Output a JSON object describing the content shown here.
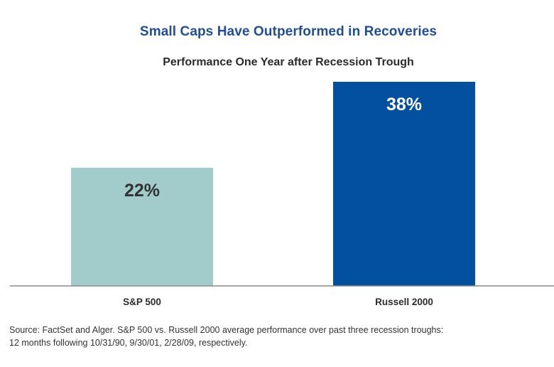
{
  "chart_data": {
    "type": "bar",
    "title": "Small Caps Have Outperformed in Recoveries",
    "subtitle": "Performance One Year after Recession Trough",
    "categories": [
      "S&P 500",
      "Russell 2000"
    ],
    "values": [
      22,
      38
    ],
    "value_labels": [
      "22%",
      "38%"
    ],
    "xlabel": "",
    "ylabel": "",
    "ylim": [
      0,
      38
    ],
    "grid": false,
    "colors": [
      "#a2cccc",
      "#02509f"
    ],
    "label_colors": [
      "#333333",
      "#ffffff"
    ]
  },
  "source": {
    "line1": "Source: FactSet and Alger. S&P 500 vs. Russell 2000 average performance over past three recession troughs:",
    "line2": "12 months following 10/31/90, 9/30/01, 2/28/09, respectively."
  }
}
